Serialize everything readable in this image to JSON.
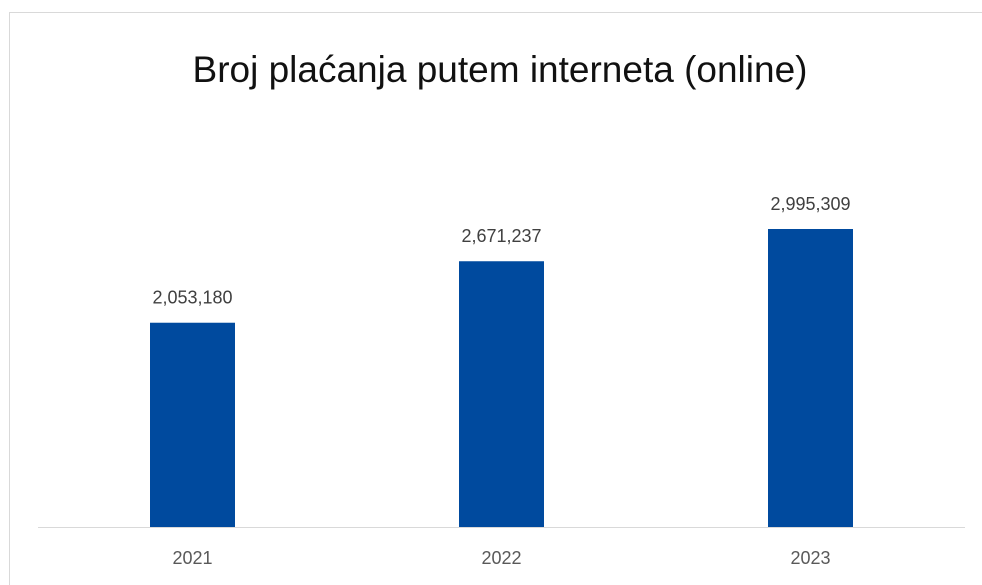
{
  "chart_data": {
    "type": "bar",
    "title": "Broj plaćanja putem interneta (online)",
    "categories": [
      "2021",
      "2022",
      "2023"
    ],
    "values": [
      2053180,
      2671237,
      2995309
    ],
    "value_labels": [
      "2,053,180",
      "2,671,237",
      "2,995,309"
    ],
    "color": "#004a9e"
  }
}
